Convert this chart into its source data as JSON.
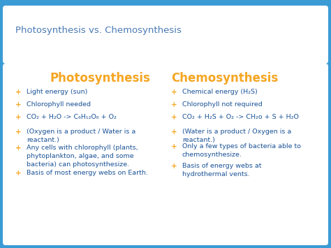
{
  "title": "Photosynthesis vs. Chemosynthesis",
  "title_color": "#4a7ab5",
  "title_fontsize": 9.5,
  "bg_outer": "#3a9bd5",
  "bg_card": "#ffffff",
  "left_heading": "Photosynthesis",
  "right_heading": "Chemosynthesis",
  "heading_color": "#f5a623",
  "heading_fontsize": 12,
  "bullet_color": "#f5a623",
  "text_color": "#1a5296",
  "text_fontsize": 6.8,
  "left_bullets": [
    "Light energy (sun)",
    "Chlorophyll needed",
    "CO₂ + H₂O -> C₆H₁₂O₆ + O₂",
    "(Oxygen is a product / Water is a\nreactant.)",
    "Any cells with chlorophyll (plants,\nphytoplankton, algae, and some\nbacteria) can photosynthesize.",
    "Basis of most energy webs on Earth."
  ],
  "right_bullets": [
    "Chemical energy (H₂S)",
    "Chlorophyll not required",
    "CO₂ + H₂S + O₂ -> CH₂o + S + H₂O",
    "(Water is a product / Oxygen is a\nreactant.)",
    "Only a few types of bacteria able to\nchemosynthesize.",
    "Basis of energy webs at\nhydrothermal vents."
  ]
}
